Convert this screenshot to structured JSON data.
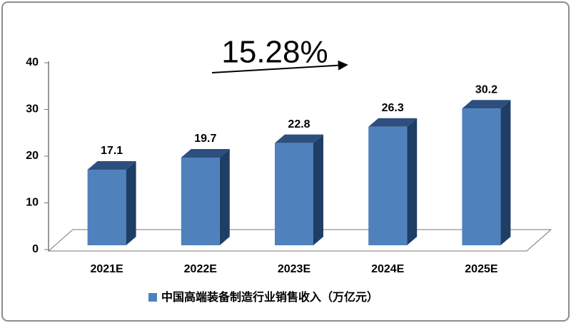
{
  "chart_data": {
    "type": "bar3d",
    "annotation": "15.28%",
    "categories": [
      "2021E",
      "2022E",
      "2023E",
      "2024E",
      "2025E"
    ],
    "series": [
      {
        "name": "中国高端装备制造行业销售收入（万亿元）",
        "color": "#4f81bd",
        "values": [
          17.1,
          19.7,
          22.8,
          26.3,
          30.2
        ]
      }
    ],
    "ylim": [
      0,
      40
    ],
    "yticks": [
      0,
      10,
      20,
      30,
      40
    ],
    "grid": false,
    "legend": "bottom"
  }
}
